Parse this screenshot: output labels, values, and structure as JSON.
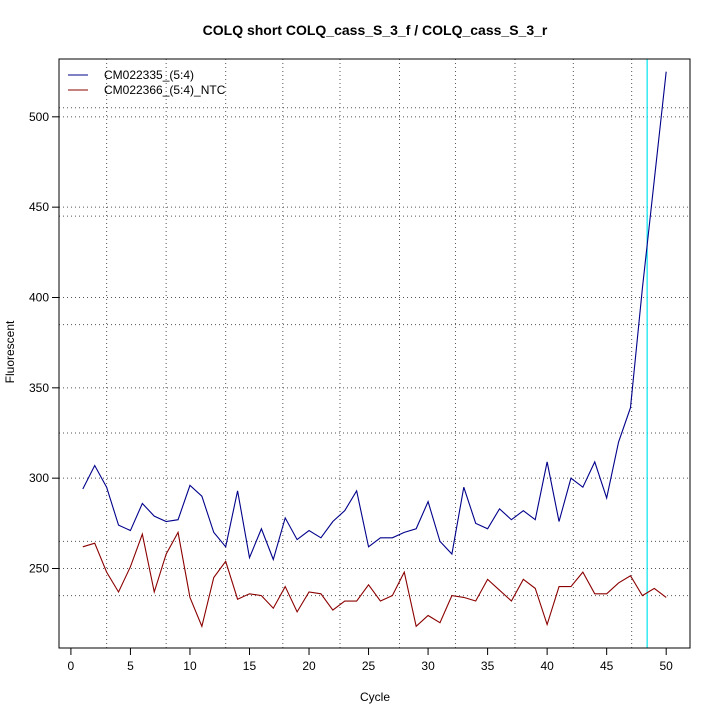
{
  "chart_data": {
    "type": "line",
    "title": "COLQ short COLQ_cass_S_3_f / COLQ_cass_S_3_r",
    "xlabel": "Cycle",
    "ylabel": "Fluorescent",
    "xlim": [
      -1,
      52
    ],
    "ylim": [
      206,
      532
    ],
    "x_ticks": [
      0,
      5,
      10,
      15,
      20,
      25,
      30,
      35,
      40,
      45,
      50
    ],
    "y_ticks": [
      250,
      300,
      350,
      400,
      450,
      500
    ],
    "grid": "dotted",
    "legend_position": "top-left",
    "vertical_gridlines_x": [
      3,
      8,
      13,
      17.8,
      22.6,
      27.6,
      32.3,
      37.3,
      42.2,
      47.1
    ],
    "horizontal_gridlines_y": [
      235,
      265,
      325,
      385,
      445,
      505
    ],
    "threshold_x": 48.4,
    "threshold_color": "#00e5ee",
    "x": [
      1,
      2,
      3,
      4,
      5,
      6,
      7,
      8,
      9,
      10,
      11,
      12,
      13,
      14,
      15,
      16,
      17,
      18,
      19,
      20,
      21,
      22,
      23,
      24,
      25,
      26,
      27,
      28,
      29,
      30,
      31,
      32,
      33,
      34,
      35,
      36,
      37,
      38,
      39,
      40,
      41,
      42,
      43,
      44,
      45,
      46,
      47,
      48,
      49,
      50
    ],
    "series": [
      {
        "name": "CM022335_(5:4)",
        "color": "#00008b",
        "values": [
          294,
          307,
          295,
          274,
          271,
          286,
          279,
          276,
          277,
          296,
          290,
          270,
          262,
          293,
          256,
          272,
          255,
          278,
          266,
          271,
          267,
          276,
          282,
          293,
          262,
          267,
          267,
          270,
          272,
          287,
          265,
          258,
          295,
          275,
          272,
          283,
          277,
          282,
          277,
          309,
          276,
          300,
          295,
          309,
          289,
          320,
          339,
          405,
          465,
          525
        ]
      },
      {
        "name": "CM022366_(5:4)_NTC",
        "color": "#8b0000",
        "values": [
          262,
          264,
          248,
          237,
          251,
          269,
          237,
          258,
          270,
          234,
          218,
          245,
          254,
          233,
          236,
          235,
          228,
          240,
          226,
          237,
          236,
          227,
          232,
          232,
          241,
          232,
          235,
          248,
          218,
          224,
          220,
          235,
          234,
          232,
          244,
          238,
          232,
          244,
          239,
          219,
          240,
          240,
          248,
          236,
          236,
          242,
          246,
          235,
          239,
          234
        ]
      }
    ]
  }
}
